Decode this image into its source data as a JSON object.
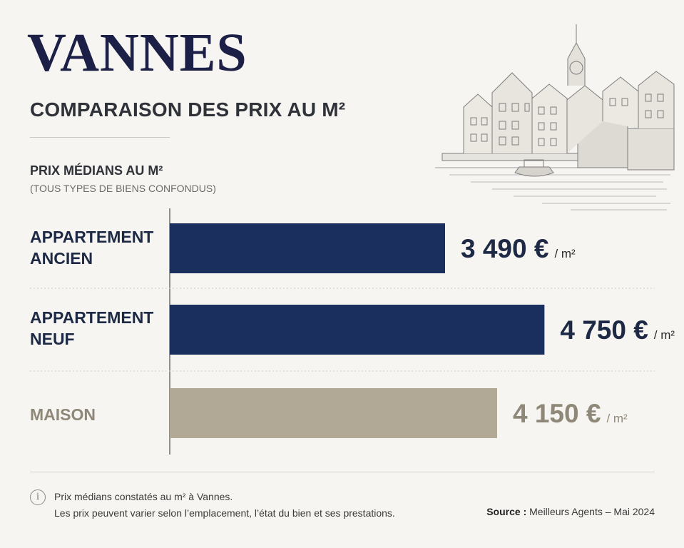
{
  "header": {
    "title": "VANNES",
    "subtitle": "COMPARAISON DES PRIX AU M²"
  },
  "section": {
    "label": "PRIX MÉDIANS AU M²",
    "note": "(TOUS TYPES DE BIENS CONFONDUS)"
  },
  "chart_data": {
    "type": "bar",
    "orientation": "horizontal",
    "categories": [
      "APPARTEMENT\nANCIEN",
      "APPARTEMENT\nNEUF",
      "MAISON"
    ],
    "values": [
      3490,
      4750,
      4150
    ],
    "value_labels": [
      "3 490 €",
      "4 750 €",
      "4 150 €"
    ],
    "unit": "/ m²",
    "xlim": [
      0,
      5000
    ],
    "grid": false,
    "colors": [
      "#1a2f5e",
      "#1a2f5e",
      "#b1a896"
    ],
    "label_colors": [
      "#1e2a45",
      "#1e2a45",
      "#8f8878"
    ]
  },
  "footer": {
    "note_line1": "Prix médians constatés au m² à Vannes.",
    "note_line2": "Les prix peuvent varier selon l’emplacement, l’état du bien et ses prestations.",
    "source_label": "Source :",
    "source_value": "Meilleurs Agents – Mai 2024",
    "info_icon": "i"
  },
  "illustration": {
    "icon": "city-waterfront-sketch-icon"
  }
}
